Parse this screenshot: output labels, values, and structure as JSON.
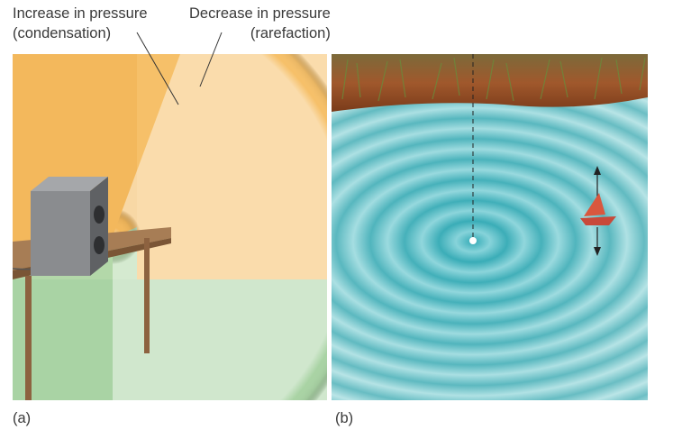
{
  "labels": {
    "increase_line1": "Increase in pressure",
    "increase_line2": "(condensation)",
    "decrease_line1": "Decrease in pressure",
    "decrease_line2": "(rarefaction)"
  },
  "panels": {
    "a": "(a)",
    "b": "(b)"
  },
  "colors": {
    "wall_orange": "#f6c069",
    "floor_green": "#a9d3a4",
    "table_wood": "#a77d55",
    "speaker_gray": "#7d7f82",
    "water_teal": "#7fd0d4",
    "boat_red": "#d9573e",
    "grass_brown": "#8a5a2a"
  }
}
